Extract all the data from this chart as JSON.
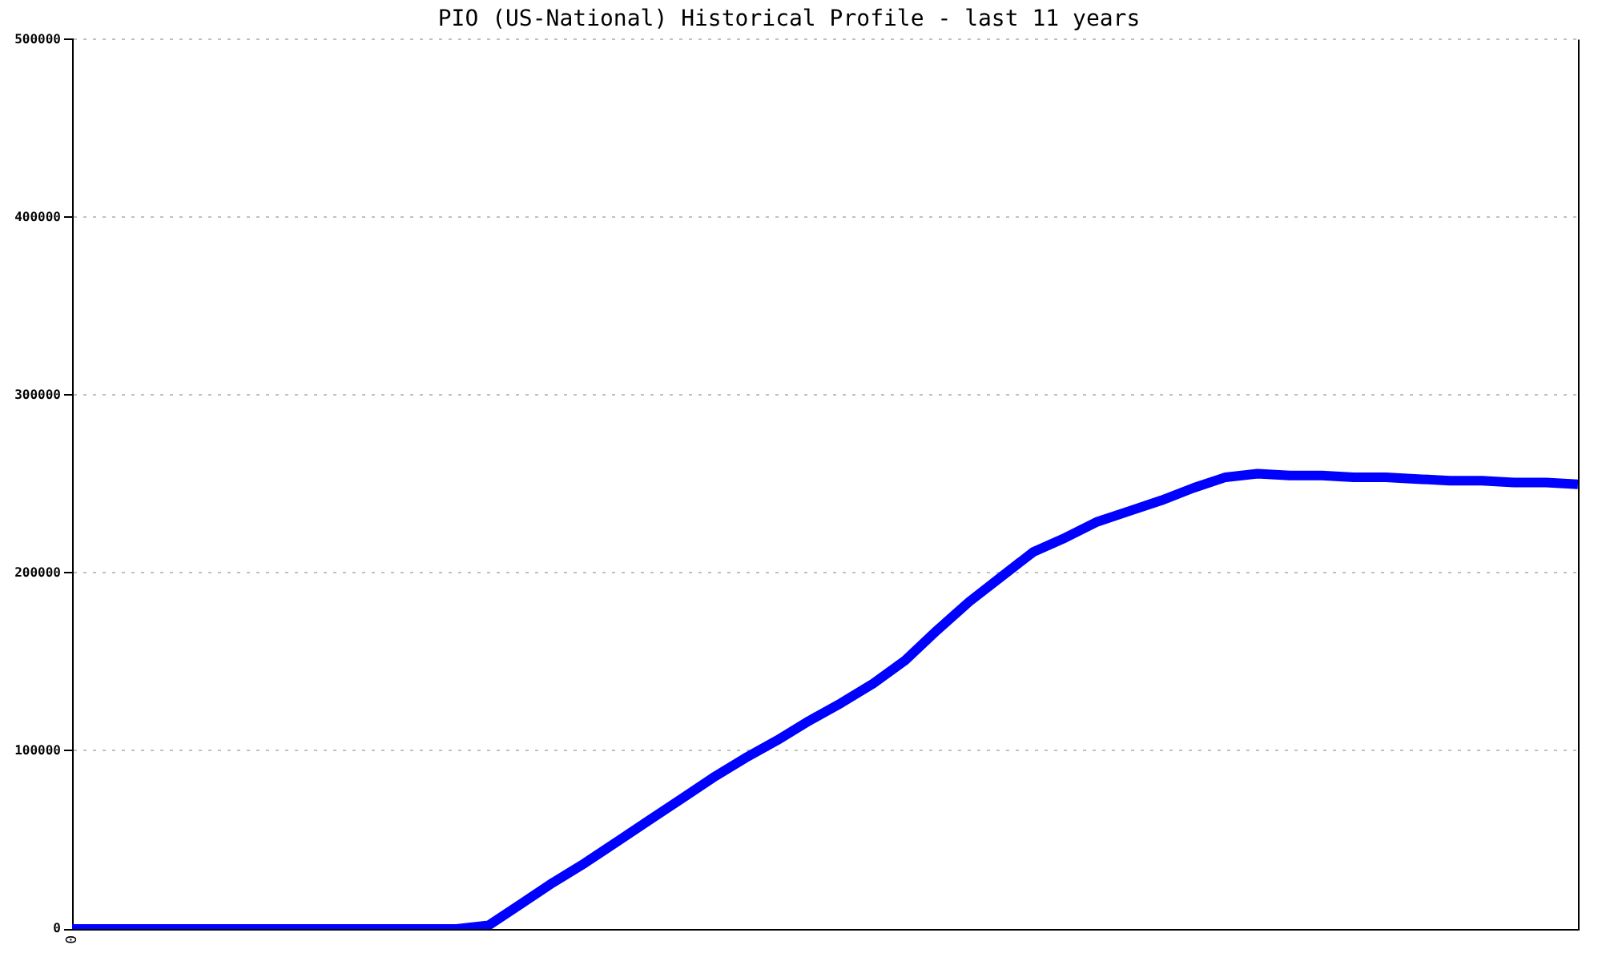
{
  "chart_data": {
    "type": "line",
    "title": "PIO (US-National) Historical Profile - last 11 years",
    "categories": [
      "0",
      null,
      null,
      null,
      null,
      null,
      null,
      null,
      null,
      null,
      null,
      null,
      null,
      null,
      null,
      null,
      null,
      null,
      null,
      null,
      null,
      null,
      null,
      null,
      null,
      null,
      null,
      null,
      null,
      null,
      null,
      null,
      null,
      null,
      null,
      null,
      null,
      null,
      null,
      null,
      null,
      null,
      null,
      null,
      null,
      null,
      null,
      null
    ],
    "series": [
      {
        "color": "#0000ff",
        "values": [
          0,
          0,
          0,
          0,
          0,
          0,
          0,
          0,
          0,
          0,
          0,
          0,
          0,
          2000,
          14000,
          26000,
          37000,
          49000,
          61000,
          73000,
          85000,
          96000,
          106000,
          117000,
          127000,
          138000,
          151000,
          168000,
          184000,
          198000,
          212000,
          220000,
          229000,
          235000,
          241000,
          248000,
          254000,
          256000,
          255000,
          255000,
          254000,
          254000,
          253000,
          252000,
          252000,
          251000,
          251000,
          250000
        ]
      }
    ],
    "ylim": [
      0,
      500000
    ],
    "yticks": [
      0,
      100000,
      200000,
      300000,
      400000,
      500000
    ],
    "grid": "y",
    "legend": false,
    "marker": "none",
    "line_style": "solid"
  }
}
